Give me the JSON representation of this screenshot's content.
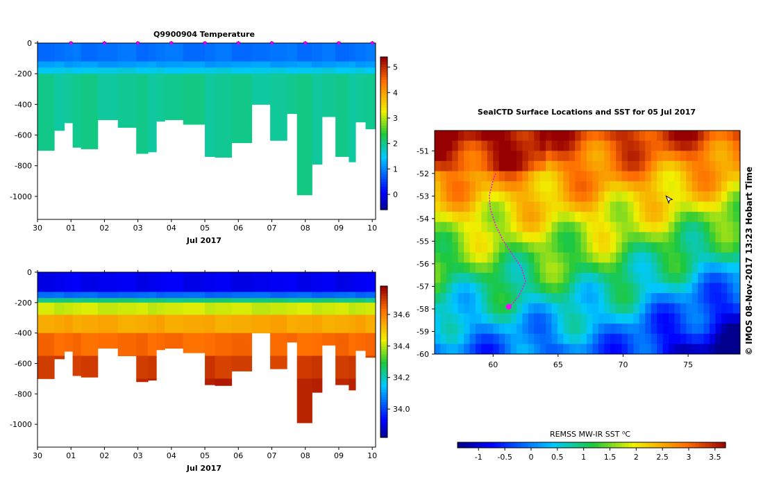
{
  "chart_data": [
    {
      "type": "heatmap",
      "title": "Q9900904  Temperature",
      "xlabel": "Jul 2017",
      "ylabel": "",
      "x_ticks": [
        "30",
        "01",
        "02",
        "03",
        "04",
        "05",
        "06",
        "07",
        "08",
        "09",
        "10"
      ],
      "xlim": [
        0,
        10.1
      ],
      "y_ticks": [
        0,
        -200,
        -400,
        -600,
        -800,
        -1000
      ],
      "ylim": [
        -1150,
        0
      ],
      "colorbar": {
        "ticks": [
          0,
          1,
          2,
          3,
          4,
          5
        ],
        "range": [
          -0.6,
          5.4
        ]
      },
      "profile_markers_days": [
        1,
        2,
        3,
        4,
        5,
        6,
        7,
        8,
        9,
        10
      ],
      "profile_bottom_depths": [
        {
          "x0": 0.0,
          "x1": 0.5,
          "depth": -700
        },
        {
          "x0": 0.5,
          "x1": 0.8,
          "depth": -570
        },
        {
          "x0": 0.8,
          "x1": 1.05,
          "depth": -520
        },
        {
          "x0": 1.05,
          "x1": 1.3,
          "depth": -680
        },
        {
          "x0": 1.3,
          "x1": 1.8,
          "depth": -690
        },
        {
          "x0": 1.8,
          "x1": 2.4,
          "depth": -500
        },
        {
          "x0": 2.4,
          "x1": 2.95,
          "depth": -550
        },
        {
          "x0": 2.95,
          "x1": 3.3,
          "depth": -720
        },
        {
          "x0": 3.3,
          "x1": 3.55,
          "depth": -710
        },
        {
          "x0": 3.55,
          "x1": 3.8,
          "depth": -510
        },
        {
          "x0": 3.8,
          "x1": 4.35,
          "depth": -500
        },
        {
          "x0": 4.35,
          "x1": 5.0,
          "depth": -530
        },
        {
          "x0": 5.0,
          "x1": 5.3,
          "depth": -740
        },
        {
          "x0": 5.3,
          "x1": 5.8,
          "depth": -745
        },
        {
          "x0": 5.8,
          "x1": 6.4,
          "depth": -650
        },
        {
          "x0": 6.4,
          "x1": 6.95,
          "depth": -400
        },
        {
          "x0": 6.95,
          "x1": 7.45,
          "depth": -635
        },
        {
          "x0": 7.45,
          "x1": 7.75,
          "depth": -460
        },
        {
          "x0": 7.75,
          "x1": 8.2,
          "depth": -990
        },
        {
          "x0": 8.2,
          "x1": 8.5,
          "depth": -790
        },
        {
          "x0": 8.5,
          "x1": 8.9,
          "depth": -480
        },
        {
          "x0": 8.9,
          "x1": 9.3,
          "depth": -740
        },
        {
          "x0": 9.3,
          "x1": 9.5,
          "depth": -775
        },
        {
          "x0": 9.5,
          "x1": 9.8,
          "depth": -515
        },
        {
          "x0": 9.8,
          "x1": 10.1,
          "depth": -560
        }
      ],
      "layers_depth_to_value": [
        {
          "depth_top": 0,
          "depth_bottom": -120,
          "value": 0.9
        },
        {
          "depth_top": -120,
          "depth_bottom": -160,
          "value": 1.2
        },
        {
          "depth_top": -160,
          "depth_bottom": -200,
          "value": 1.6
        },
        {
          "depth_top": -200,
          "depth_bottom": -1000,
          "value": 2.0
        }
      ]
    },
    {
      "type": "heatmap",
      "title": "",
      "xlabel": "Jul 2017",
      "ylabel": "",
      "x_ticks": [
        "30",
        "01",
        "02",
        "03",
        "04",
        "05",
        "06",
        "07",
        "08",
        "09",
        "10"
      ],
      "xlim": [
        0,
        10.1
      ],
      "y_ticks": [
        0,
        -200,
        -400,
        -600,
        -800,
        -1000
      ],
      "ylim": [
        -1150,
        0
      ],
      "colorbar": {
        "ticks": [
          34.0,
          34.2,
          34.4,
          34.6
        ],
        "range": [
          33.82,
          34.78
        ]
      },
      "layers_depth_to_value": [
        {
          "depth_top": 0,
          "depth_bottom": -130,
          "value": 33.92
        },
        {
          "depth_top": -130,
          "depth_bottom": -170,
          "value": 34.05
        },
        {
          "depth_top": -170,
          "depth_bottom": -200,
          "value": 34.25
        },
        {
          "depth_top": -200,
          "depth_bottom": -280,
          "value": 34.42
        },
        {
          "depth_top": -280,
          "depth_bottom": -400,
          "value": 34.55
        },
        {
          "depth_top": -400,
          "depth_bottom": -550,
          "value": 34.64
        },
        {
          "depth_top": -550,
          "depth_bottom": -700,
          "value": 34.7
        },
        {
          "depth_top": -700,
          "depth_bottom": -1000,
          "value": 34.74
        }
      ]
    },
    {
      "type": "heatmap",
      "title": "SealCTD Surface Locations and SST for 05 Jul 2017",
      "xlabel": "",
      "ylabel": "",
      "x_ticks": [
        60,
        65,
        70,
        75
      ],
      "xlim": [
        55.5,
        79
      ],
      "y_ticks": [
        -51,
        -52,
        -53,
        -54,
        -55,
        -56,
        -57,
        -58,
        -59,
        -60
      ],
      "ylim": [
        -60,
        -50.1
      ],
      "colorbar": {
        "label": "REMSS MW-IR SST ⁰C",
        "ticks": [
          "-1",
          "-0.5",
          "0",
          "0.5",
          "1",
          "1.5",
          "2",
          "2.5",
          "3",
          "3.5"
        ],
        "range": [
          -1.4,
          3.7
        ]
      },
      "seal_track": [
        {
          "lon": 60.2,
          "lat": -52.0
        },
        {
          "lon": 60.0,
          "lat": -52.3
        },
        {
          "lon": 59.7,
          "lat": -53.0
        },
        {
          "lon": 59.8,
          "lat": -53.6
        },
        {
          "lon": 60.2,
          "lat": -54.3
        },
        {
          "lon": 60.8,
          "lat": -55.0
        },
        {
          "lon": 61.5,
          "lat": -55.6
        },
        {
          "lon": 62.2,
          "lat": -56.2
        },
        {
          "lon": 62.5,
          "lat": -56.8
        },
        {
          "lon": 62.0,
          "lat": -57.4
        },
        {
          "lon": 61.3,
          "lat": -57.9
        }
      ],
      "seal_position": {
        "lon": 61.2,
        "lat": -57.9
      },
      "cursor_position": {
        "lon": 73.3,
        "lat": -53.0
      }
    }
  ],
  "side_label": "© IMOS 08-Nov-2017 13:23 Hobart Time"
}
